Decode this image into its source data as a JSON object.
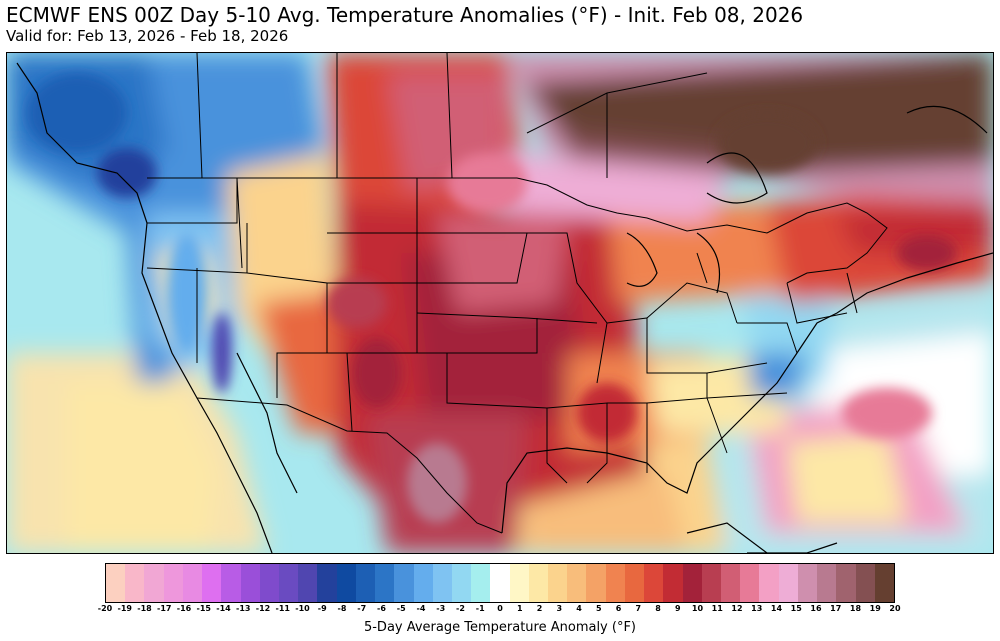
{
  "header": {
    "title": "ECMWF ENS 00Z Day 5-10 Avg. Temperature Anomalies (°F) - Init. Feb 08, 2026",
    "subtitle": "Valid for: Feb 13, 2026 - Feb 18, 2026"
  },
  "colorbar": {
    "label": "5-Day Average Temperature Anomaly (°F)",
    "ticks": [
      "-20",
      "-19",
      "-18",
      "-17",
      "-16",
      "-15",
      "-14",
      "-13",
      "-12",
      "-11",
      "-10",
      "-9",
      "-8",
      "-7",
      "-6",
      "-5",
      "-4",
      "-3",
      "-2",
      "-1",
      "0",
      "1",
      "2",
      "3",
      "4",
      "5",
      "6",
      "7",
      "8",
      "9",
      "10",
      "11",
      "12",
      "13",
      "14",
      "15",
      "16",
      "17",
      "18",
      "19",
      "20"
    ],
    "colors": [
      "#fcd0c0",
      "#f9b7c9",
      "#f1a7d4",
      "#ee97dc",
      "#e88ae3",
      "#de6ff0",
      "#b85ce6",
      "#9a4fd9",
      "#7f4bcc",
      "#6a4bc1",
      "#5046b0",
      "#23419c",
      "#0f4aa1",
      "#1d5fb4",
      "#2c75c6",
      "#4992dc",
      "#64aded",
      "#7fc3f2",
      "#92d8f2",
      "#a5eeee",
      "#ffffff",
      "#fff7c6",
      "#fde8a6",
      "#fbd38d",
      "#f8bd7b",
      "#f4a266",
      "#f08350",
      "#e8683f",
      "#dc4739",
      "#c22c34",
      "#a3223a",
      "#b83e51",
      "#d15e74",
      "#e77a97",
      "#f3a0c5",
      "#eeadd6",
      "#cf8fae",
      "#b87a90",
      "#a0636e",
      "#845052",
      "#653f30"
    ]
  },
  "map": {
    "colors": {
      "ocean_warm": "#f8e3ae",
      "ocean_cool": "#8fdcf0",
      "atlantic": "#b8e6ee",
      "west_cold": "#2c75c6",
      "plains_warm": "#c22c34",
      "great_lakes_hot": "#845052",
      "canada_extreme": "#653f30",
      "east_mild": "#fde8a6",
      "border": "#000000"
    }
  }
}
